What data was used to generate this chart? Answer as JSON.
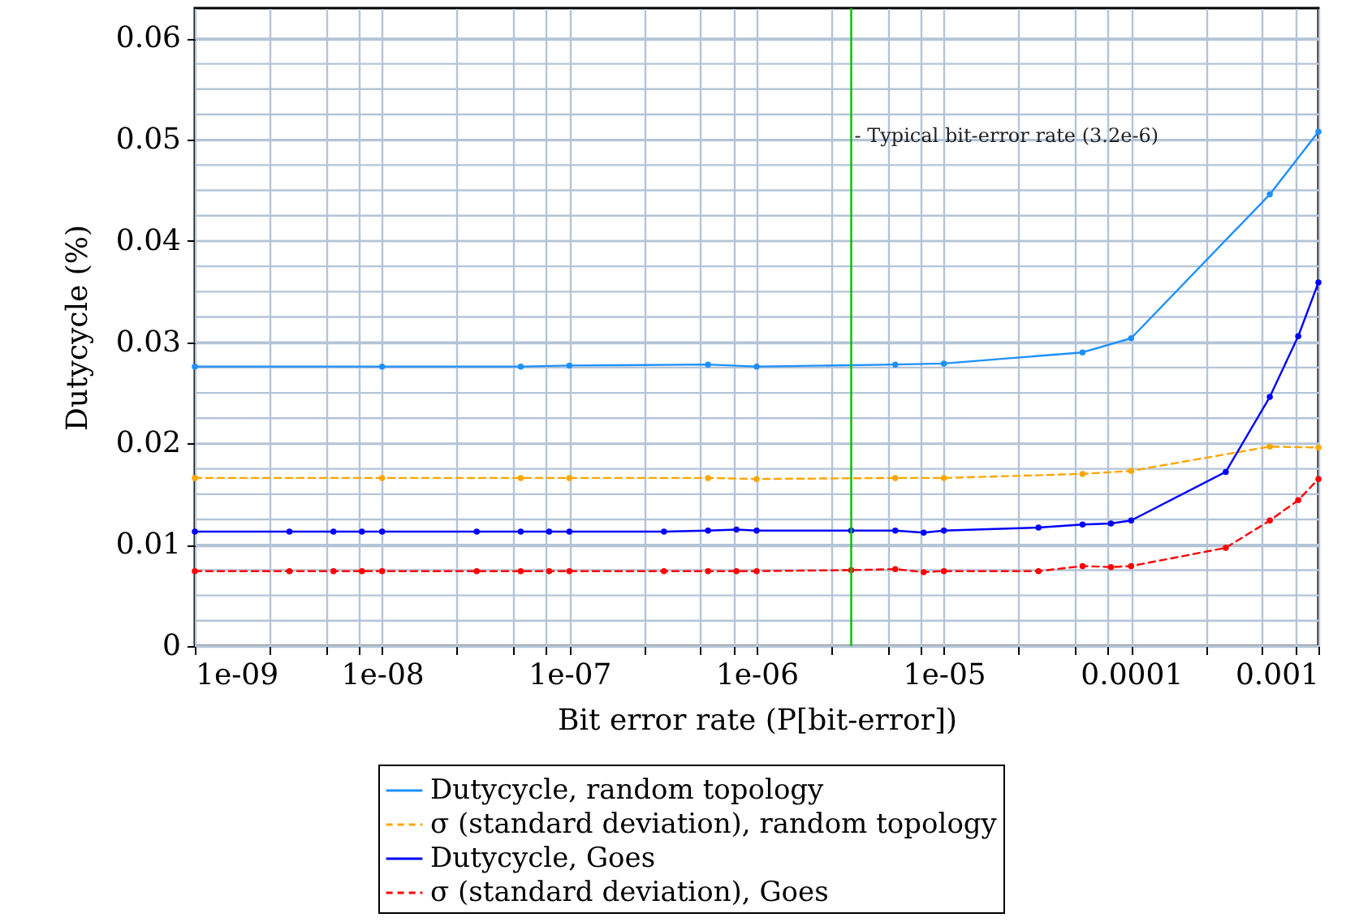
{
  "chart_data": {
    "type": "line",
    "xlabel": "Bit error rate (P[bit-error])",
    "ylabel": "Dutycycle (%)",
    "log": "x",
    "grid": true,
    "legend": "bottom",
    "marker": "circle",
    "xlim": [
      1e-09,
      0.001
    ],
    "ylim": [
      0,
      0.063
    ],
    "xticks": [
      {
        "value": 1e-09,
        "label": "1e-09"
      },
      {
        "value": 2.5e-09,
        "label": null
      },
      {
        "value": 5e-09,
        "label": null
      },
      {
        "value": 7.5e-09,
        "label": null
      },
      {
        "value": 1e-08,
        "label": "1e-08"
      },
      {
        "value": 2.5e-08,
        "label": null
      },
      {
        "value": 5e-08,
        "label": null
      },
      {
        "value": 7.5e-08,
        "label": null
      },
      {
        "value": 1e-07,
        "label": "1e-07"
      },
      {
        "value": 2.5e-07,
        "label": null
      },
      {
        "value": 5e-07,
        "label": null
      },
      {
        "value": 7.5e-07,
        "label": null
      },
      {
        "value": 1e-06,
        "label": "1e-06"
      },
      {
        "value": 2.5e-06,
        "label": null
      },
      {
        "value": 5e-06,
        "label": null
      },
      {
        "value": 7.5e-06,
        "label": null
      },
      {
        "value": 1e-05,
        "label": "1e-05"
      },
      {
        "value": 2.5e-05,
        "label": null
      },
      {
        "value": 5e-05,
        "label": null
      },
      {
        "value": 7.5e-05,
        "label": null
      },
      0.0001,
      {
        "value": 0.00025,
        "label": null
      },
      {
        "value": 0.0005,
        "label": null
      },
      {
        "value": 0.00075,
        "label": null
      },
      0.001
    ],
    "yticks": [
      0,
      {
        "value": 0.0025,
        "label": null
      },
      {
        "value": 0.005,
        "label": null
      },
      {
        "value": 0.0075,
        "label": null
      },
      0.01,
      {
        "value": 0.0125,
        "label": null
      },
      {
        "value": 0.015,
        "label": null
      },
      {
        "value": 0.0175,
        "label": null
      },
      0.02,
      {
        "value": 0.0225,
        "label": null
      },
      {
        "value": 0.025,
        "label": null
      },
      {
        "value": 0.0275,
        "label": null
      },
      0.03,
      {
        "value": 0.0325,
        "label": null
      },
      {
        "value": 0.035,
        "label": null
      },
      {
        "value": 0.0375,
        "label": null
      },
      0.04,
      {
        "value": 0.0425,
        "label": null
      },
      {
        "value": 0.045,
        "label": null
      },
      {
        "value": 0.0475,
        "label": null
      },
      0.05,
      {
        "value": 0.0525,
        "label": null
      },
      {
        "value": 0.055,
        "label": null
      },
      {
        "value": 0.0575,
        "label": null
      },
      0.06
    ],
    "ref_lines": [
      {
        "axis": "x",
        "value": 3.2e-06,
        "label": "- Typical bit-error rate (3.2e-6)",
        "color": "#00c000"
      }
    ],
    "series": [
      {
        "name": "Dutycycle, random topology",
        "color": "#1e90ff",
        "line_style": "solid",
        "x": [
          1e-09,
          1e-08,
          5.5e-08,
          1e-07,
          5.5e-07,
          1e-06,
          5.5e-06,
          1e-05,
          5.5e-05,
          0.0001,
          0.00055,
          0.001
        ],
        "values": [
          0.0276,
          0.0276,
          0.0276,
          0.0277,
          0.0278,
          0.0276,
          0.0278,
          0.0279,
          0.029,
          0.0304,
          0.0446,
          0.0508
        ]
      },
      {
        "name": "σ (standard deviation), random topology",
        "color": "#ffa500",
        "line_style": "dashed",
        "x": [
          1e-09,
          1e-08,
          5.5e-08,
          1e-07,
          5.5e-07,
          1e-06,
          5.5e-06,
          1e-05,
          5.5e-05,
          0.0001,
          0.00055,
          0.001
        ],
        "values": [
          0.0166,
          0.0166,
          0.0166,
          0.0166,
          0.0166,
          0.0165,
          0.0166,
          0.0166,
          0.017,
          0.0173,
          0.0197,
          0.0196
        ]
      },
      {
        "name": "Dutycycle, Goes",
        "color": "#0000ff",
        "line_style": "solid",
        "x": [
          1e-09,
          3.2e-09,
          5.5e-09,
          7.8e-09,
          1e-08,
          3.2e-08,
          5.5e-08,
          7.8e-08,
          1e-07,
          3.2e-07,
          5.5e-07,
          7.8e-07,
          1e-06,
          3.2e-06,
          5.5e-06,
          7.8e-06,
          1e-05,
          3.2e-05,
          5.5e-05,
          7.8e-05,
          0.0001,
          0.00032,
          0.00055,
          0.00078,
          0.001
        ],
        "values": [
          0.0113,
          0.0113,
          0.0113,
          0.0113,
          0.0113,
          0.0113,
          0.0113,
          0.0113,
          0.0113,
          0.0113,
          0.0114,
          0.0115,
          0.0114,
          0.0114,
          0.0114,
          0.0112,
          0.0114,
          0.0117,
          0.012,
          0.0121,
          0.0124,
          0.0172,
          0.0246,
          0.0306,
          0.0359
        ]
      },
      {
        "name": "σ (standard deviation), Goes",
        "color": "#ff0000",
        "line_style": "dashed",
        "x": [
          1e-09,
          3.2e-09,
          5.5e-09,
          7.8e-09,
          1e-08,
          3.2e-08,
          5.5e-08,
          7.8e-08,
          1e-07,
          3.2e-07,
          5.5e-07,
          7.8e-07,
          1e-06,
          3.2e-06,
          5.5e-06,
          7.8e-06,
          1e-05,
          3.2e-05,
          5.5e-05,
          7.8e-05,
          0.0001,
          0.00032,
          0.00055,
          0.00078,
          0.001
        ],
        "values": [
          0.0074,
          0.0074,
          0.0074,
          0.0074,
          0.0074,
          0.0074,
          0.0074,
          0.0074,
          0.0074,
          0.0074,
          0.0074,
          0.0074,
          0.0074,
          0.0075,
          0.0076,
          0.0073,
          0.0074,
          0.0074,
          0.0079,
          0.0078,
          0.0079,
          0.0097,
          0.0124,
          0.0144,
          0.0165
        ]
      }
    ]
  }
}
